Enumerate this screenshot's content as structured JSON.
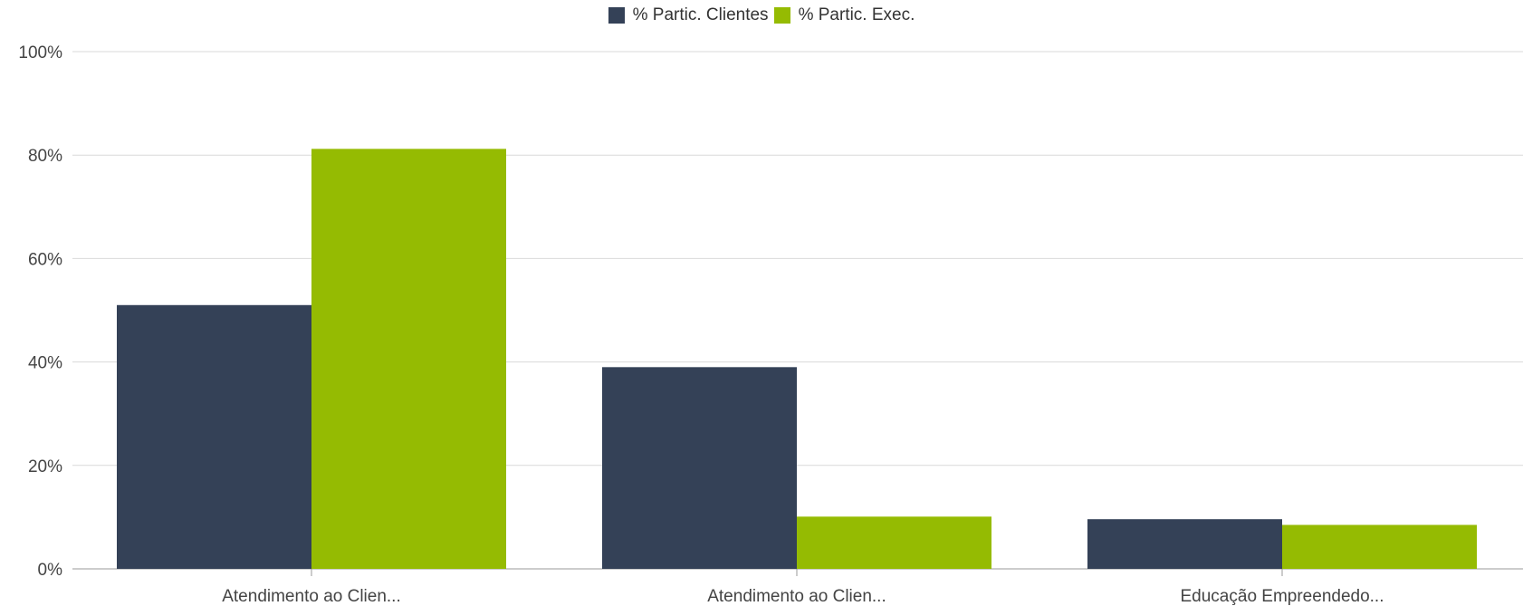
{
  "chart_data": {
    "type": "bar",
    "categories": [
      "Atendimento ao Clien...",
      "Atendimento ao Clien...",
      "Educação Empreendedo..."
    ],
    "series": [
      {
        "name": "% Partic. Clientes",
        "color": "#344157",
        "values": [
          51,
          39,
          9.6
        ]
      },
      {
        "name": "% Partic. Exec.",
        "color": "#95bb02",
        "values": [
          81.2,
          10.1,
          8.5
        ]
      }
    ],
    "ylim": [
      0,
      100
    ],
    "yticks": [
      "0%",
      "20%",
      "40%",
      "60%",
      "80%",
      "100%"
    ],
    "ytick_values": [
      0,
      20,
      40,
      60,
      80,
      100
    ],
    "grid": true,
    "legend_position": "top-center"
  }
}
